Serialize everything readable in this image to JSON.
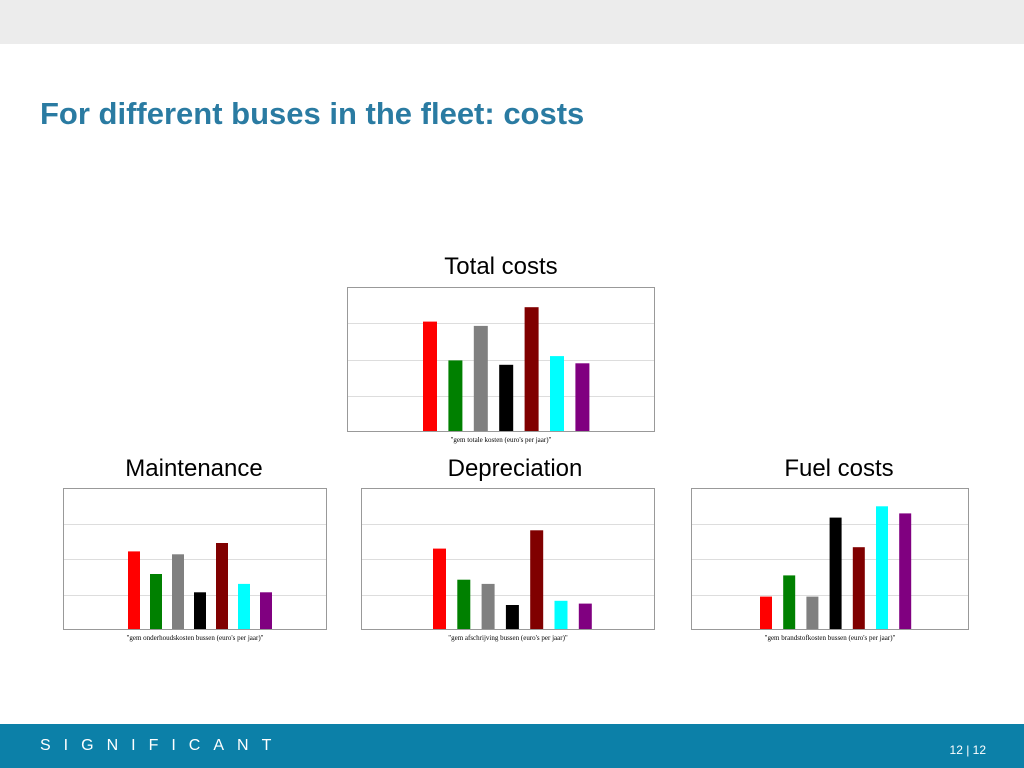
{
  "slide": {
    "title": "For different buses in the fleet: costs",
    "logo": "SIGNIFICANT",
    "page_number": "12 | 12"
  },
  "colors": {
    "title": "#2a7ba2",
    "footer": "#0c80a8",
    "bars": [
      "#ff0000",
      "#008000",
      "#808080",
      "#000000",
      "#800000",
      "#00ffff",
      "#800080"
    ]
  },
  "chart_data": [
    {
      "type": "bar",
      "label": "Total costs",
      "caption": "\"gem totale kosten (euro's per jaar)\"",
      "values": [
        0.76,
        0.49,
        0.73,
        0.46,
        0.86,
        0.52,
        0.47
      ],
      "ylim": [
        0,
        1
      ],
      "grid": true
    },
    {
      "type": "bar",
      "label": "Maintenance",
      "caption": "\"gem onderhoudskosten bussen (euro's per jaar)\"",
      "values": [
        0.55,
        0.39,
        0.53,
        0.26,
        0.61,
        0.32,
        0.26
      ],
      "ylim": [
        0,
        1
      ],
      "grid": true
    },
    {
      "type": "bar",
      "label": "Depreciation",
      "caption": "\"gem afschrijving bussen (euro's per jaar)\"",
      "values": [
        0.57,
        0.35,
        0.32,
        0.17,
        0.7,
        0.2,
        0.18
      ],
      "ylim": [
        0,
        1
      ],
      "grid": true
    },
    {
      "type": "bar",
      "label": "Fuel costs",
      "caption": "\"gem brandstofkosten bussen (euro's per jaar)\"",
      "values": [
        0.23,
        0.38,
        0.23,
        0.79,
        0.58,
        0.87,
        0.82
      ],
      "ylim": [
        0,
        1
      ],
      "grid": true
    }
  ]
}
